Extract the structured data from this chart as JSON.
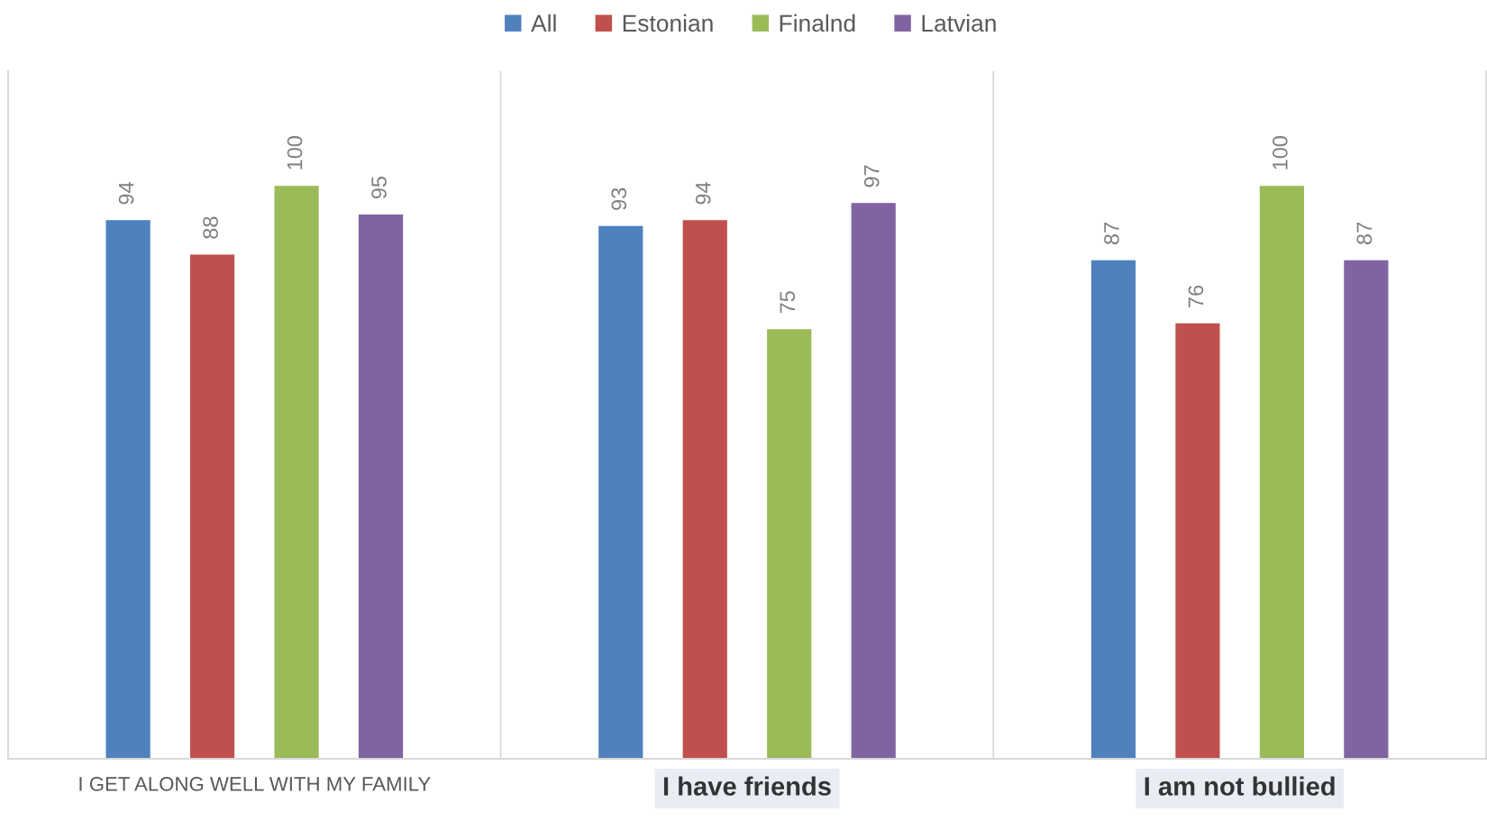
{
  "chart_data": {
    "type": "bar",
    "categories": [
      "I GET ALONG WELL WITH MY FAMILY",
      "I have friends",
      "I am not bullied"
    ],
    "series": [
      {
        "name": "All",
        "color": "#4f81bd",
        "values": [
          94,
          93,
          87
        ]
      },
      {
        "name": "Estonian",
        "color": "#c0504d",
        "values": [
          88,
          94,
          76
        ]
      },
      {
        "name": "Finalnd",
        "color": "#9bbb59",
        "values": [
          100,
          75,
          100
        ]
      },
      {
        "name": "Latvian",
        "color": "#8064a2",
        "values": [
          95,
          97,
          87
        ]
      }
    ],
    "ylim": [
      0,
      120
    ],
    "data_labels": true,
    "legend": "top",
    "grid": "x",
    "tick_labels": "x"
  }
}
